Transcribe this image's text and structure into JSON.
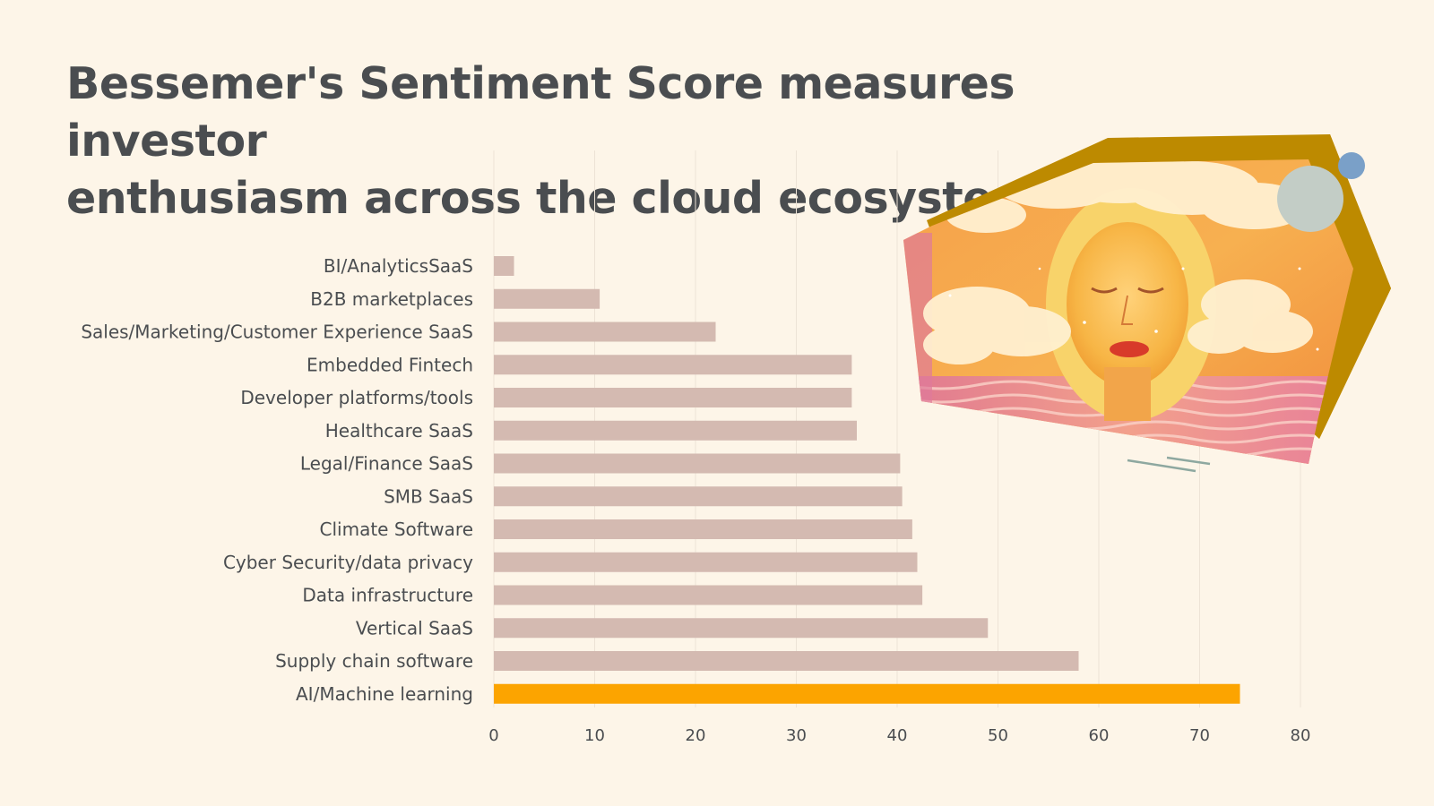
{
  "colors": {
    "background": "#fdf5e8",
    "bar_default": "#d4bab1",
    "bar_highlight": "#fca400",
    "gridline": "#ede3d6",
    "text": "#4a4d50"
  },
  "chart_data": {
    "type": "bar",
    "orientation": "horizontal",
    "title_lines": [
      "Bessemer's Sentiment Score measures investor",
      "enthusiasm across the cloud ecosystem"
    ],
    "categories": [
      "BI/AnalyticsSaaS",
      "B2B marketplaces",
      "Sales/Marketing/Customer Experience SaaS",
      "Embedded Fintech",
      "Developer platforms/tools",
      "Healthcare SaaS",
      "Legal/Finance SaaS",
      "SMB SaaS",
      "Climate Software",
      "Cyber Security/data privacy",
      "Data infrastructure",
      "Vertical SaaS",
      "Supply chain software",
      "AI/Machine learning"
    ],
    "values": [
      2,
      10.5,
      22,
      35.5,
      35.5,
      36,
      40.3,
      40.5,
      41.5,
      42,
      42.5,
      49,
      58,
      74
    ],
    "highlight_category": "AI/Machine learning",
    "xlim": [
      0,
      80
    ],
    "xticks": [
      0,
      10,
      20,
      30,
      40,
      50,
      60,
      70,
      80
    ],
    "xlabel": "",
    "ylabel": "",
    "grid": "vertical",
    "legend": "none"
  }
}
